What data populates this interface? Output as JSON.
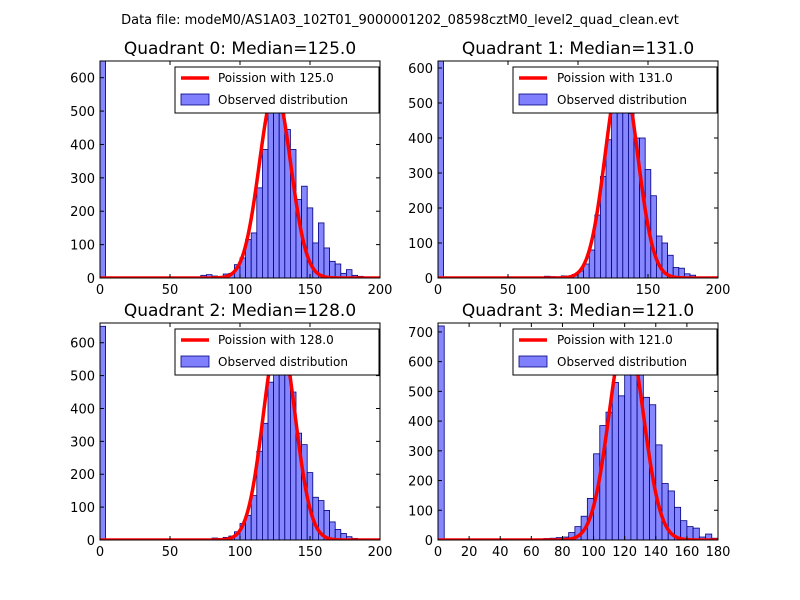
{
  "figure": {
    "suptitle": "Data file: modeM0/AS1A03_102T01_9000001202_08598cztM0_level2_quad_clean.evt"
  },
  "chart_data": [
    {
      "type": "bar",
      "title": "Quadrant 0: Median=125.0",
      "xlim": [
        0,
        200
      ],
      "ylim": [
        0,
        650
      ],
      "xticks": [
        0,
        50,
        100,
        150,
        200
      ],
      "yticks": [
        0,
        100,
        200,
        300,
        400,
        500,
        600
      ],
      "bin_width": 4,
      "hist": [
        [
          0,
          650
        ],
        [
          56,
          2
        ],
        [
          64,
          2
        ],
        [
          72,
          8
        ],
        [
          76,
          10
        ],
        [
          80,
          6
        ],
        [
          84,
          4
        ],
        [
          88,
          12
        ],
        [
          92,
          14
        ],
        [
          96,
          40
        ],
        [
          100,
          60
        ],
        [
          104,
          115
        ],
        [
          108,
          135
        ],
        [
          112,
          270
        ],
        [
          116,
          385
        ],
        [
          120,
          500
        ],
        [
          124,
          565
        ],
        [
          128,
          560
        ],
        [
          132,
          445
        ],
        [
          136,
          385
        ],
        [
          140,
          235
        ],
        [
          144,
          275
        ],
        [
          148,
          210
        ],
        [
          152,
          105
        ],
        [
          156,
          165
        ],
        [
          160,
          90
        ],
        [
          164,
          50
        ],
        [
          168,
          42
        ],
        [
          172,
          14
        ],
        [
          176,
          25
        ],
        [
          180,
          8
        ],
        [
          184,
          5
        ]
      ],
      "poisson_mean": 125.0,
      "poisson_peak": 565,
      "legend": [
        "Poission with 125.0",
        "Observed distribution"
      ]
    },
    {
      "type": "bar",
      "title": "Quadrant 1: Median=131.0",
      "xlim": [
        0,
        200
      ],
      "ylim": [
        0,
        620
      ],
      "xticks": [
        0,
        50,
        100,
        150,
        200
      ],
      "yticks": [
        0,
        100,
        200,
        300,
        400,
        500,
        600
      ],
      "bin_width": 4,
      "hist": [
        [
          0,
          620
        ],
        [
          68,
          3
        ],
        [
          76,
          5
        ],
        [
          80,
          4
        ],
        [
          88,
          6
        ],
        [
          92,
          4
        ],
        [
          96,
          10
        ],
        [
          100,
          20
        ],
        [
          104,
          40
        ],
        [
          108,
          80
        ],
        [
          112,
          180
        ],
        [
          116,
          290
        ],
        [
          120,
          395
        ],
        [
          124,
          500
        ],
        [
          128,
          510
        ],
        [
          132,
          560
        ],
        [
          136,
          470
        ],
        [
          140,
          400
        ],
        [
          144,
          400
        ],
        [
          148,
          310
        ],
        [
          152,
          235
        ],
        [
          156,
          120
        ],
        [
          160,
          100
        ],
        [
          164,
          65
        ],
        [
          168,
          30
        ],
        [
          172,
          28
        ],
        [
          176,
          12
        ],
        [
          180,
          8
        ]
      ],
      "poisson_mean": 131.0,
      "poisson_peak": 590,
      "legend": [
        "Poission with 131.0",
        "Observed distribution"
      ]
    },
    {
      "type": "bar",
      "title": "Quadrant 2: Median=128.0",
      "xlim": [
        0,
        200
      ],
      "ylim": [
        0,
        660
      ],
      "xticks": [
        0,
        50,
        100,
        150,
        200
      ],
      "yticks": [
        0,
        100,
        200,
        300,
        400,
        500,
        600
      ],
      "bin_width": 4,
      "hist": [
        [
          0,
          650
        ],
        [
          68,
          2
        ],
        [
          72,
          3
        ],
        [
          76,
          2
        ],
        [
          80,
          6
        ],
        [
          84,
          5
        ],
        [
          88,
          8
        ],
        [
          92,
          12
        ],
        [
          96,
          25
        ],
        [
          100,
          50
        ],
        [
          104,
          75
        ],
        [
          108,
          135
        ],
        [
          112,
          270
        ],
        [
          116,
          355
        ],
        [
          120,
          480
        ],
        [
          124,
          600
        ],
        [
          128,
          600
        ],
        [
          132,
          545
        ],
        [
          136,
          450
        ],
        [
          140,
          325
        ],
        [
          144,
          290
        ],
        [
          148,
          205
        ],
        [
          152,
          130
        ],
        [
          156,
          120
        ],
        [
          160,
          90
        ],
        [
          164,
          55
        ],
        [
          168,
          32
        ],
        [
          172,
          20
        ],
        [
          176,
          10
        ],
        [
          180,
          5
        ]
      ],
      "poisson_mean": 128.0,
      "poisson_peak": 630,
      "legend": [
        "Poission with 128.0",
        "Observed distribution"
      ]
    },
    {
      "type": "bar",
      "title": "Quadrant 3: Median=121.0",
      "xlim": [
        0,
        180
      ],
      "ylim": [
        0,
        730
      ],
      "xticks": [
        0,
        20,
        40,
        60,
        80,
        100,
        120,
        140,
        160,
        180
      ],
      "yticks": [
        0,
        100,
        200,
        300,
        400,
        500,
        600,
        700
      ],
      "bin_width": 4,
      "hist": [
        [
          0,
          720
        ],
        [
          68,
          5
        ],
        [
          72,
          6
        ],
        [
          76,
          8
        ],
        [
          80,
          10
        ],
        [
          84,
          25
        ],
        [
          88,
          45
        ],
        [
          92,
          80
        ],
        [
          96,
          140
        ],
        [
          100,
          290
        ],
        [
          104,
          385
        ],
        [
          108,
          430
        ],
        [
          112,
          530
        ],
        [
          116,
          485
        ],
        [
          120,
          650
        ],
        [
          124,
          680
        ],
        [
          128,
          600
        ],
        [
          132,
          480
        ],
        [
          136,
          455
        ],
        [
          140,
          320
        ],
        [
          144,
          190
        ],
        [
          148,
          165
        ],
        [
          152,
          110
        ],
        [
          156,
          65
        ],
        [
          160,
          45
        ],
        [
          164,
          40
        ],
        [
          168,
          10
        ],
        [
          172,
          20
        ],
        [
          176,
          6
        ]
      ],
      "poisson_mean": 121.0,
      "poisson_peak": 700,
      "legend": [
        "Poission with 121.0",
        "Observed distribution"
      ]
    }
  ],
  "colors": {
    "bar_fill": "#8080ff",
    "bar_stroke": "#000080",
    "line": "#ff0000",
    "axes": "#000000"
  }
}
